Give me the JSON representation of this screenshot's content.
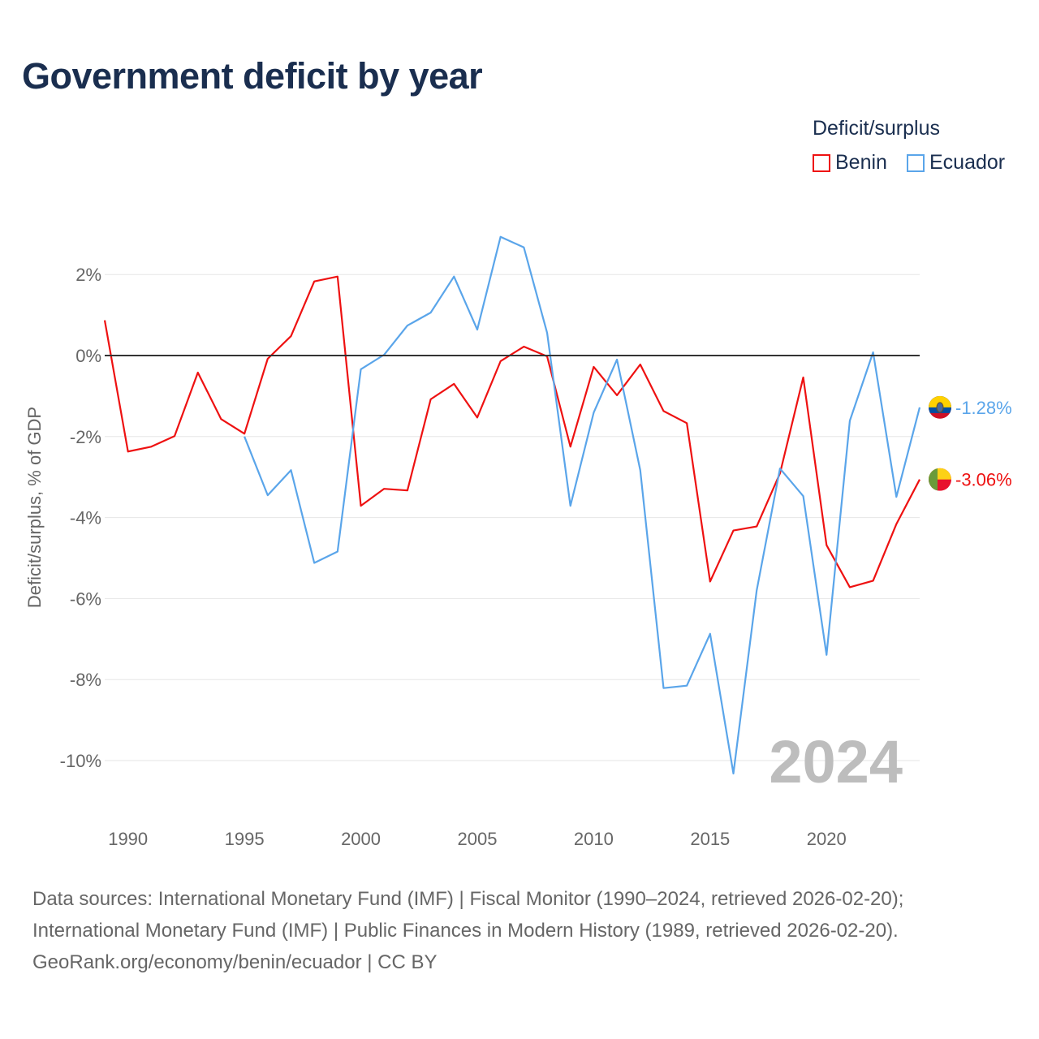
{
  "chart_data": {
    "type": "line",
    "title": "Government deficit by year",
    "ylabel": "Deficit/surplus, % of GDP",
    "xlabel": "",
    "legend_title": "Deficit/surplus",
    "legend_position": "top-right",
    "watermark_year": "2024",
    "xlim": [
      1989,
      2024
    ],
    "ylim": [
      -11,
      3.5
    ],
    "x_ticks": [
      1990,
      1995,
      2000,
      2005,
      2010,
      2015,
      2020
    ],
    "y_ticks": [
      2,
      0,
      -2,
      -4,
      -6,
      -8,
      -10
    ],
    "y_tick_labels": [
      "2%",
      "0%",
      "-2%",
      "-4%",
      "-6%",
      "-8%",
      "-10%"
    ],
    "grid": true,
    "series": [
      {
        "name": "Benin",
        "color": "#ee1111",
        "end_label": "-3.06%",
        "x": [
          1989,
          1990,
          1991,
          1992,
          1993,
          1994,
          1995,
          1996,
          1997,
          1998,
          1999,
          2000,
          2001,
          2002,
          2003,
          2004,
          2005,
          2006,
          2007,
          2008,
          2009,
          2010,
          2011,
          2012,
          2013,
          2014,
          2015,
          2016,
          2017,
          2018,
          2019,
          2020,
          2021,
          2022,
          2023,
          2024
        ],
        "values": [
          0.87,
          -2.37,
          -2.25,
          -1.99,
          -0.42,
          -1.57,
          -1.93,
          -0.08,
          0.48,
          1.83,
          1.95,
          -3.71,
          -3.29,
          -3.33,
          -1.08,
          -0.7,
          -1.53,
          -0.14,
          0.22,
          -0.02,
          -2.25,
          -0.28,
          -0.98,
          -0.22,
          -1.37,
          -1.67,
          -5.58,
          -4.32,
          -4.22,
          -2.91,
          -0.54,
          -4.68,
          -5.72,
          -5.56,
          -4.16,
          -3.06
        ]
      },
      {
        "name": "Ecuador",
        "color": "#5aa5ea",
        "end_label": "-1.28%",
        "x": [
          1995,
          1996,
          1997,
          1998,
          1999,
          2000,
          2001,
          2002,
          2003,
          2004,
          2005,
          2006,
          2007,
          2008,
          2009,
          2010,
          2011,
          2012,
          2013,
          2014,
          2015,
          2016,
          2017,
          2018,
          2019,
          2020,
          2021,
          2022,
          2023,
          2024
        ],
        "values": [
          -2.0,
          -3.45,
          -2.83,
          -5.12,
          -4.84,
          -0.34,
          0.02,
          0.74,
          1.06,
          1.95,
          0.64,
          2.93,
          2.67,
          0.56,
          -3.71,
          -1.41,
          -0.1,
          -2.83,
          -8.21,
          -8.15,
          -6.87,
          -10.32,
          -5.8,
          -2.79,
          -3.47,
          -7.39,
          -1.61,
          0.08,
          -3.49,
          -1.28
        ]
      }
    ]
  },
  "footer": {
    "line1": "Data sources: International Monetary Fund (IMF) | Fiscal Monitor (1990–2024, retrieved 2026-02-20);",
    "line2": "International Monetary Fund (IMF) | Public Finances in Modern History (1989, retrieved 2026-02-20).",
    "line3": "GeoRank.org/economy/benin/ecuador | CC BY"
  }
}
